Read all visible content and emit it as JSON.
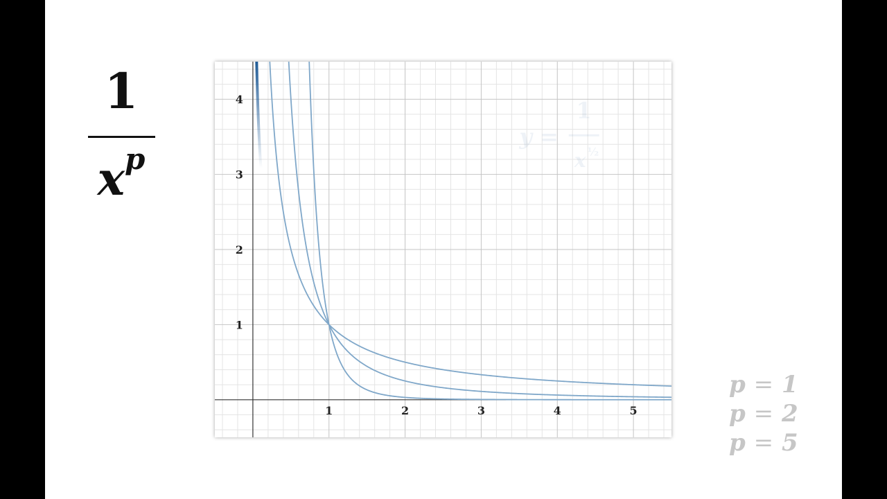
{
  "formula": {
    "numerator": "1",
    "base": "x",
    "exponent": "p"
  },
  "chart_data": {
    "type": "line",
    "title": "",
    "xlabel": "",
    "ylabel": "",
    "xlim": [
      -0.5,
      5.5
    ],
    "ylim": [
      -0.5,
      4.5
    ],
    "grid": true,
    "x_ticks": [
      "1",
      "2",
      "3",
      "4",
      "5"
    ],
    "y_ticks": [
      "1",
      "2",
      "3",
      "4"
    ],
    "annotation_watermark": "y = 1 / x^(1/2)",
    "series": [
      {
        "name": "p = 1",
        "exponent": 1,
        "color": "#7fa7c9"
      },
      {
        "name": "p = 2",
        "exponent": 2,
        "color": "#7fa7c9"
      },
      {
        "name": "p = 5",
        "exponent": 5,
        "color": "#7fa7c9"
      }
    ],
    "highlight_color": "#1f5b96"
  },
  "legend": {
    "items": [
      {
        "var": "p",
        "eq": "=",
        "value": "1"
      },
      {
        "var": "p",
        "eq": "=",
        "value": "2"
      },
      {
        "var": "p",
        "eq": "=",
        "value": "5"
      }
    ]
  }
}
